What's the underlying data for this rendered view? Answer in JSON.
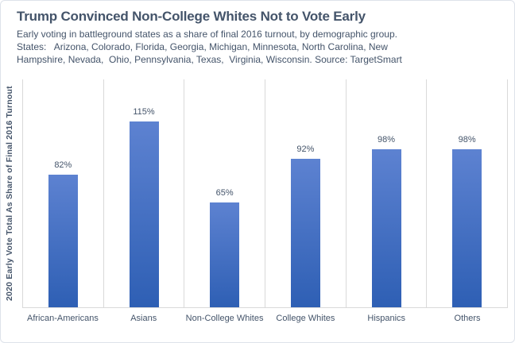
{
  "header": {
    "title": "Trump Convinced Non-College Whites Not to Vote Early",
    "subtitle_lines": [
      "Early voting in battleground states as a share of final 2016 turnout, by demographic group.",
      "States:   Arizona, Colorado, Florida, Georgia, Michigan, Minnesota, North Carolina, New",
      "Hampshire, Nevada,  Ohio, Pennsylvania, Texas,  Virginia, Wisconsin. Source: TargetSmart"
    ]
  },
  "chart_data": {
    "type": "bar",
    "title": "Trump Convinced Non-College Whites Not to Vote Early",
    "subtitle": "Early voting in battleground states as a share of final 2016 turnout, by demographic group. States: Arizona, Colorado, Florida, Georgia, Michigan, Minnesota, North Carolina, New Hampshire, Nevada, Ohio, Pennsylvania, Texas, Virginia, Wisconsin. Source: TargetSmart",
    "categories": [
      "African-Americans",
      "Asians",
      "Non-College Whites",
      "College Whites",
      "Hispanics",
      "Others"
    ],
    "values": [
      82,
      115,
      65,
      92,
      98,
      98
    ],
    "value_labels": [
      "82%",
      "115%",
      "65%",
      "92%",
      "98%",
      "98%"
    ],
    "xlabel": "",
    "ylabel": "2020 Early Vote Total As Share of Final 2016 Turnout",
    "ylim": [
      0,
      141
    ],
    "grid": "vertical-category-separators-only",
    "legend": "none",
    "colors": {
      "bar_gradient_top": "#5D82D1",
      "bar_gradient_bottom": "#2E5FB4",
      "text": "#44546a",
      "gridline": "#d9d9d9",
      "frame_border": "#dde2ea"
    }
  }
}
